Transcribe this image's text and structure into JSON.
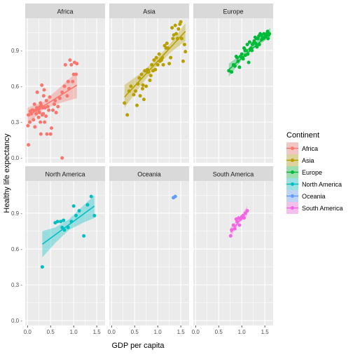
{
  "chart_data": {
    "type": "scatter",
    "xlabel": "GDP per capita",
    "ylabel": "Healthy life expectancy",
    "xlim": [
      -0.05,
      1.68
    ],
    "ylim": [
      -0.04,
      1.17
    ],
    "x_ticks": [
      0.0,
      0.5,
      1.0,
      1.5
    ],
    "x_tick_labels": [
      "0.0",
      "0.5",
      "1.0",
      "1.5"
    ],
    "y_ticks": [
      0.0,
      0.3,
      0.6,
      0.9
    ],
    "y_tick_labels": [
      "0.0 -",
      "0.3 -",
      "0.6 -",
      "0.9 -"
    ],
    "grid": true,
    "legend_position": "right",
    "legend_title": "Continent",
    "facet_rows": 2,
    "facet_cols": 3,
    "panels": [
      {
        "name": "Africa",
        "color": "#F8766D",
        "points": [
          [
            0.02,
            0.11
          ],
          [
            0.01,
            0.27
          ],
          [
            0.02,
            0.36
          ],
          [
            0.05,
            0.3
          ],
          [
            0.06,
            0.39
          ],
          [
            0.08,
            0.37
          ],
          [
            0.1,
            0.4
          ],
          [
            0.12,
            0.4
          ],
          [
            0.13,
            0.32
          ],
          [
            0.15,
            0.45
          ],
          [
            0.16,
            0.26
          ],
          [
            0.18,
            0.4
          ],
          [
            0.19,
            0.37
          ],
          [
            0.2,
            0.42
          ],
          [
            0.21,
            0.55
          ],
          [
            0.22,
            0.4
          ],
          [
            0.24,
            0.34
          ],
          [
            0.25,
            0.41
          ],
          [
            0.26,
            0.38
          ],
          [
            0.27,
            0.43
          ],
          [
            0.28,
            0.46
          ],
          [
            0.28,
            0.3
          ],
          [
            0.29,
            0.2
          ],
          [
            0.3,
            0.44
          ],
          [
            0.31,
            0.61
          ],
          [
            0.32,
            0.36
          ],
          [
            0.33,
            0.42
          ],
          [
            0.34,
            0.37
          ],
          [
            0.35,
            0.52
          ],
          [
            0.36,
            0.57
          ],
          [
            0.37,
            0.3
          ],
          [
            0.38,
            0.42
          ],
          [
            0.4,
            0.35
          ],
          [
            0.41,
            0.48
          ],
          [
            0.42,
            0.2
          ],
          [
            0.44,
            0.43
          ],
          [
            0.46,
            0.4
          ],
          [
            0.48,
            0.51
          ],
          [
            0.5,
            0.2
          ],
          [
            0.52,
            0.25
          ],
          [
            0.55,
            0.4
          ],
          [
            0.58,
            0.45
          ],
          [
            0.6,
            0.48
          ],
          [
            0.62,
            0.38
          ],
          [
            0.66,
            0.43
          ],
          [
            0.7,
            0.5
          ],
          [
            0.75,
            0.55
          ],
          [
            0.8,
            0.6
          ],
          [
            0.82,
            0.78
          ],
          [
            0.86,
            0.52
          ],
          [
            0.88,
            0.64
          ],
          [
            0.9,
            0.58
          ],
          [
            0.92,
            0.82
          ],
          [
            0.95,
            0.78
          ],
          [
            0.98,
            0.64
          ],
          [
            1.0,
            0.7
          ],
          [
            1.02,
            0.8
          ],
          [
            1.05,
            0.7
          ],
          [
            1.07,
            0.79
          ],
          [
            0.75,
            0.0
          ]
        ],
        "fit": [
          [
            0.0,
            0.35
          ],
          [
            1.07,
            0.61
          ]
        ],
        "band": [
          [
            0.0,
            0.28,
            0.42
          ],
          [
            0.35,
            0.41,
            0.47
          ],
          [
            0.7,
            0.46,
            0.59
          ],
          [
            1.07,
            0.5,
            0.72
          ]
        ]
      },
      {
        "name": "Asia",
        "color": "#B79F00",
        "points": [
          [
            0.28,
            0.46
          ],
          [
            0.34,
            0.36
          ],
          [
            0.38,
            0.56
          ],
          [
            0.42,
            0.6
          ],
          [
            0.48,
            0.53
          ],
          [
            0.52,
            0.56
          ],
          [
            0.55,
            0.44
          ],
          [
            0.57,
            0.62
          ],
          [
            0.6,
            0.67
          ],
          [
            0.62,
            0.52
          ],
          [
            0.65,
            0.7
          ],
          [
            0.67,
            0.58
          ],
          [
            0.68,
            0.61
          ],
          [
            0.7,
            0.49
          ],
          [
            0.72,
            0.73
          ],
          [
            0.75,
            0.6
          ],
          [
            0.78,
            0.74
          ],
          [
            0.8,
            0.72
          ],
          [
            0.83,
            0.65
          ],
          [
            0.85,
            0.69
          ],
          [
            0.87,
            0.78
          ],
          [
            0.9,
            0.73
          ],
          [
            0.92,
            0.82
          ],
          [
            0.95,
            0.74
          ],
          [
            0.97,
            0.84
          ],
          [
            1.0,
            0.78
          ],
          [
            1.03,
            0.87
          ],
          [
            1.05,
            0.81
          ],
          [
            1.08,
            0.82
          ],
          [
            1.1,
            0.84
          ],
          [
            1.12,
            0.78
          ],
          [
            1.15,
            0.94
          ],
          [
            1.18,
            0.92
          ],
          [
            1.2,
            0.96
          ],
          [
            1.22,
            0.92
          ],
          [
            1.25,
            0.79
          ],
          [
            1.28,
            0.84
          ],
          [
            1.31,
            1.09
          ],
          [
            1.33,
            1.0
          ],
          [
            1.35,
            1.03
          ],
          [
            1.38,
            1.11
          ],
          [
            1.4,
            1.04
          ],
          [
            1.43,
            1.0
          ],
          [
            1.45,
            1.08
          ],
          [
            1.48,
            1.12
          ],
          [
            1.52,
            1.0
          ],
          [
            1.55,
            0.81
          ],
          [
            1.58,
            0.95
          ],
          [
            1.6,
            0.89
          ],
          [
            1.5,
            1.14
          ],
          [
            0.78,
            0.72
          ]
        ],
        "fit": [
          [
            0.28,
            0.51
          ],
          [
            1.6,
            1.06
          ]
        ],
        "band": [
          [
            0.28,
            0.42,
            0.61
          ],
          [
            0.6,
            0.59,
            0.7
          ],
          [
            0.95,
            0.76,
            0.82
          ],
          [
            1.3,
            0.89,
            0.97
          ],
          [
            1.6,
            0.98,
            1.13
          ]
        ]
      },
      {
        "name": "Europe",
        "color": "#00BA38",
        "points": [
          [
            0.72,
            0.73
          ],
          [
            0.78,
            0.72
          ],
          [
            0.82,
            0.78
          ],
          [
            0.85,
            0.77
          ],
          [
            0.88,
            0.85
          ],
          [
            0.9,
            0.84
          ],
          [
            0.92,
            0.81
          ],
          [
            0.95,
            0.76
          ],
          [
            0.97,
            0.85
          ],
          [
            1.0,
            0.87
          ],
          [
            1.02,
            0.84
          ],
          [
            1.03,
            0.83
          ],
          [
            1.05,
            0.92
          ],
          [
            1.07,
            0.9
          ],
          [
            1.08,
            0.86
          ],
          [
            1.1,
            0.9
          ],
          [
            1.12,
            0.95
          ],
          [
            1.13,
            0.87
          ],
          [
            1.15,
            0.8
          ],
          [
            1.17,
            0.97
          ],
          [
            1.18,
            0.91
          ],
          [
            1.2,
            0.92
          ],
          [
            1.22,
            0.9
          ],
          [
            1.23,
            0.95
          ],
          [
            1.25,
            0.96
          ],
          [
            1.27,
            0.98
          ],
          [
            1.29,
            1.01
          ],
          [
            1.3,
            0.96
          ],
          [
            1.32,
            1.0
          ],
          [
            1.33,
            0.93
          ],
          [
            1.35,
            1.0
          ],
          [
            1.37,
            1.02
          ],
          [
            1.38,
            0.95
          ],
          [
            1.4,
            1.04
          ],
          [
            1.42,
            1.03
          ],
          [
            1.43,
            0.99
          ],
          [
            1.45,
            1.01
          ],
          [
            1.47,
            1.0
          ],
          [
            1.48,
            1.04
          ],
          [
            1.5,
            1.01
          ],
          [
            1.52,
            1.02
          ],
          [
            1.54,
            1.04
          ],
          [
            1.56,
            1.06
          ],
          [
            1.58,
            1.03
          ],
          [
            1.6,
            1.04
          ],
          [
            1.57,
            1.0
          ]
        ],
        "fit": [
          [
            0.72,
            0.74
          ],
          [
            1.62,
            1.05
          ]
        ],
        "band": [
          [
            0.72,
            0.68,
            0.79
          ],
          [
            1.0,
            0.82,
            0.87
          ],
          [
            1.3,
            0.93,
            0.97
          ],
          [
            1.62,
            1.01,
            1.09
          ]
        ]
      },
      {
        "name": "North America",
        "color": "#00BFC4",
        "points": [
          [
            0.32,
            0.45
          ],
          [
            0.6,
            0.82
          ],
          [
            0.65,
            0.83
          ],
          [
            0.72,
            0.83
          ],
          [
            0.75,
            0.78
          ],
          [
            0.78,
            0.84
          ],
          [
            0.8,
            0.76
          ],
          [
            0.88,
            0.78
          ],
          [
            0.95,
            0.83
          ],
          [
            1.0,
            0.96
          ],
          [
            1.05,
            0.88
          ],
          [
            1.12,
            0.92
          ],
          [
            1.22,
            0.71
          ],
          [
            1.3,
            0.97
          ],
          [
            1.38,
            1.04
          ],
          [
            1.45,
            0.88
          ]
        ],
        "fit": [
          [
            0.32,
            0.64
          ],
          [
            1.45,
            0.96
          ]
        ],
        "band": [
          [
            0.32,
            0.53,
            0.75
          ],
          [
            0.6,
            0.65,
            0.78
          ],
          [
            0.9,
            0.76,
            0.85
          ],
          [
            1.2,
            0.82,
            0.96
          ],
          [
            1.45,
            0.86,
            1.05
          ]
        ]
      },
      {
        "name": "Oceania",
        "color": "#619CFF",
        "points": [
          [
            1.34,
            1.03
          ],
          [
            1.38,
            1.04
          ]
        ],
        "fit": null,
        "band": null
      },
      {
        "name": "South America",
        "color": "#F564E3",
        "points": [
          [
            0.76,
            0.71
          ],
          [
            0.78,
            0.76
          ],
          [
            0.82,
            0.8
          ],
          [
            0.85,
            0.77
          ],
          [
            0.88,
            0.85
          ],
          [
            0.9,
            0.83
          ],
          [
            0.93,
            0.86
          ],
          [
            0.95,
            0.8
          ],
          [
            0.97,
            0.85
          ],
          [
            1.0,
            0.87
          ],
          [
            1.03,
            0.88
          ],
          [
            1.05,
            0.86
          ],
          [
            1.08,
            0.9
          ],
          [
            1.12,
            0.92
          ]
        ],
        "fit": [
          [
            0.76,
            0.74
          ],
          [
            1.12,
            0.92
          ]
        ],
        "band": [
          [
            0.76,
            0.7,
            0.78
          ],
          [
            0.95,
            0.82,
            0.86
          ],
          [
            1.12,
            0.88,
            0.96
          ]
        ]
      }
    ],
    "legend": [
      {
        "label": "Africa",
        "color": "#F8766D"
      },
      {
        "label": "Asia",
        "color": "#B79F00"
      },
      {
        "label": "Europe",
        "color": "#00BA38"
      },
      {
        "label": "North America",
        "color": "#00BFC4"
      },
      {
        "label": "Oceania",
        "color": "#619CFF"
      },
      {
        "label": "South America",
        "color": "#F564E3"
      }
    ]
  }
}
